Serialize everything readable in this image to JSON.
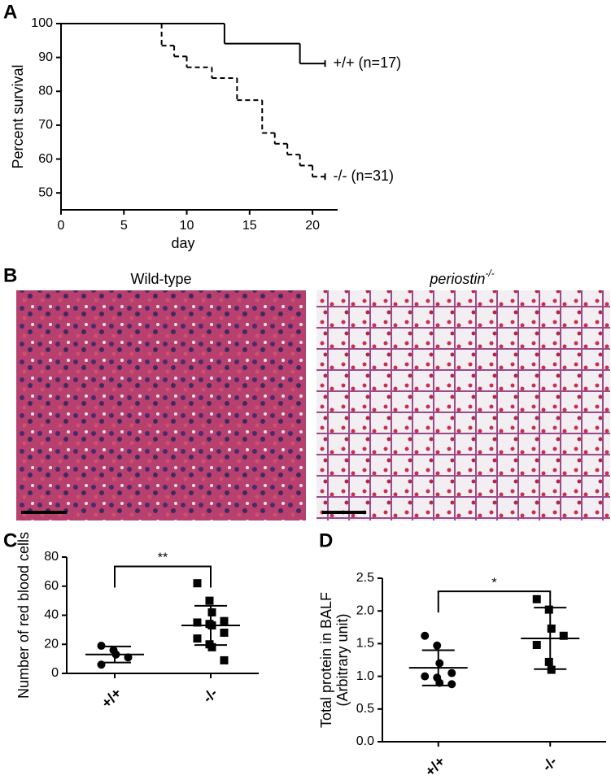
{
  "panel_labels": [
    "A",
    "B",
    "C",
    "D"
  ],
  "images": [
    {
      "title": "Wild-type"
    },
    {
      "title": "periostin",
      "superscript": "-/-"
    }
  ],
  "chart_data": [
    {
      "type": "step",
      "xlabel": "day",
      "ylabel": "Percent survival",
      "xlim": [
        0,
        22
      ],
      "ylim": [
        45,
        100
      ],
      "xticks": [
        0,
        5,
        10,
        15,
        20
      ],
      "yticks": [
        50,
        60,
        70,
        80,
        90,
        100
      ],
      "series": [
        {
          "name": "+/+ (n=17)",
          "color": "#000000",
          "dashed": false,
          "x": [
            0,
            13,
            19,
            21
          ],
          "values": [
            100,
            94.1,
            88.2,
            88.2
          ]
        },
        {
          "name": "-/- (n=31)",
          "color": "#000000",
          "dashed": true,
          "x": [
            0,
            8,
            9,
            10,
            12,
            14,
            16,
            17,
            18,
            19,
            20,
            21
          ],
          "values": [
            100,
            93.5,
            90.3,
            87.1,
            83.9,
            77.4,
            67.7,
            64.5,
            61.3,
            58.1,
            54.8,
            54.8
          ]
        }
      ]
    },
    {
      "type": "dot",
      "ylabel": "Number of red blood cells",
      "categories": [
        "+/+",
        "-/-"
      ],
      "markers": [
        "circle",
        "square"
      ],
      "color": "#000000",
      "ylim": [
        0,
        80
      ],
      "yticks": [
        0,
        20,
        40,
        60,
        80
      ],
      "points": [
        [
          19,
          16,
          13,
          11,
          6
        ],
        [
          62,
          50,
          42,
          36,
          35,
          34,
          33,
          28,
          24,
          20,
          18,
          9
        ]
      ],
      "mean": [
        13,
        33
      ],
      "sd": [
        5.5,
        13.5
      ],
      "significance": "**"
    },
    {
      "type": "dot",
      "ylabel": [
        "Total protein in BALF",
        "(Arbitrary unit)"
      ],
      "categories": [
        "+/+",
        "-/-"
      ],
      "markers": [
        "circle",
        "square"
      ],
      "color": "#000000",
      "ylim": [
        0,
        2.5
      ],
      "yticks": [
        {
          "value": 0,
          "label": "0.0"
        },
        0.5,
        {
          "value": 1,
          "label": "1.0"
        },
        1.5,
        {
          "value": 2,
          "label": "2.0"
        },
        2.5
      ],
      "points": [
        [
          1.62,
          1.47,
          1.2,
          1.05,
          1.0,
          0.98,
          0.9,
          0.88
        ],
        [
          2.18,
          2.02,
          1.73,
          1.62,
          1.48,
          1.22,
          1.1
        ]
      ],
      "mean": [
        1.13,
        1.58
      ],
      "sd": [
        0.27,
        0.47
      ],
      "significance": "*"
    }
  ]
}
